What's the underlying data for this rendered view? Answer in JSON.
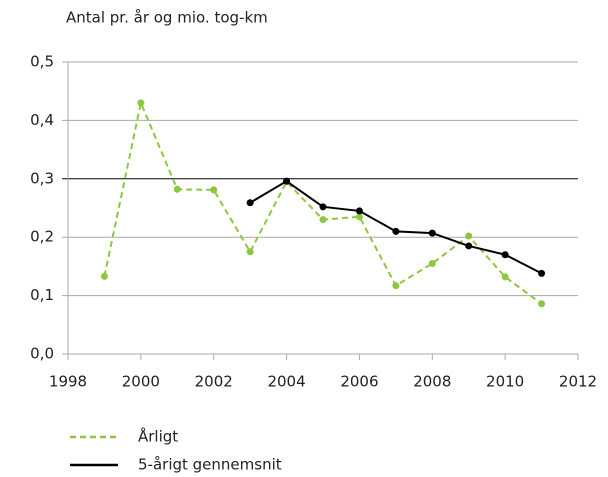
{
  "chart_data": {
    "type": "line",
    "y_axis_label": "Antal pr. år og mio. tog-km",
    "x": [
      1999,
      2000,
      2001,
      2002,
      2003,
      2004,
      2005,
      2006,
      2007,
      2008,
      2009,
      2010,
      2011
    ],
    "series": [
      {
        "name": "Årligt",
        "color": "#8dc63f",
        "dashed": true,
        "values": [
          0.133,
          0.43,
          0.282,
          0.281,
          0.175,
          0.295,
          0.23,
          0.235,
          0.117,
          0.155,
          0.202,
          0.132,
          0.086
        ]
      },
      {
        "name": "5-årigt gennemsnit",
        "color": "#000000",
        "dashed": false,
        "values": [
          null,
          null,
          null,
          null,
          0.259,
          0.296,
          0.252,
          0.245,
          0.21,
          0.207,
          0.185,
          0.17,
          0.138
        ]
      }
    ],
    "xlim": [
      1998,
      2012
    ],
    "xticks": [
      1998,
      2000,
      2002,
      2004,
      2006,
      2008,
      2010,
      2012
    ],
    "ylim": [
      0,
      0.5
    ],
    "yticks": [
      {
        "value": 0,
        "label": "0,0"
      },
      {
        "value": 0.1,
        "label": "0,1"
      },
      {
        "value": 0.2,
        "label": "0,2"
      },
      {
        "value": 0.3,
        "label": "0,3"
      },
      {
        "value": 0.4,
        "label": "0,4"
      },
      {
        "value": 0.5,
        "label": "0,5"
      }
    ],
    "grid": true,
    "reference_line": 0.3,
    "legend": "bottom-left"
  }
}
